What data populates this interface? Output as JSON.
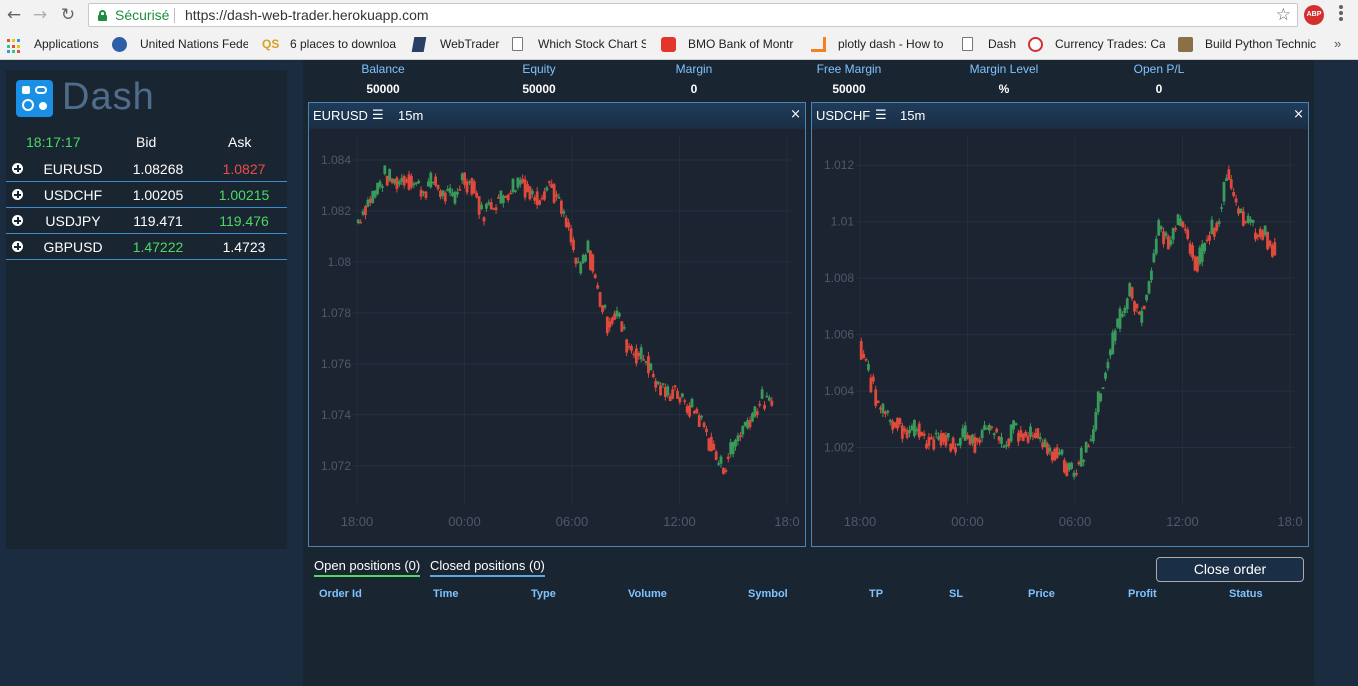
{
  "browser": {
    "secure_label": "Sécurisé",
    "url": "https://dash-web-trader.herokuapp.com",
    "abp_label": "ABP",
    "bookmarks": [
      {
        "label": "Applications"
      },
      {
        "label": "United Nations Fede"
      },
      {
        "label": "6 places to downloa"
      },
      {
        "label": "WebTrader"
      },
      {
        "label": "Which Stock Chart S"
      },
      {
        "label": "BMO Bank of Montr"
      },
      {
        "label": "plotly dash - How to"
      },
      {
        "label": "Dash"
      },
      {
        "label": "Currency Trades: Cal"
      },
      {
        "label": "Build Python Technic"
      }
    ],
    "more": "»"
  },
  "brand": {
    "name": "Dash"
  },
  "quotes": {
    "time": "18:17:17",
    "bid_header": "Bid",
    "ask_header": "Ask",
    "rows": [
      {
        "symbol": "EURUSD",
        "bid": "1.08268",
        "ask": "1.0827",
        "bid_dir": "neutral",
        "ask_dir": "down"
      },
      {
        "symbol": "USDCHF",
        "bid": "1.00205",
        "ask": "1.00215",
        "bid_dir": "neutral",
        "ask_dir": "up"
      },
      {
        "symbol": "USDJPY",
        "bid": "119.471",
        "ask": "119.476",
        "bid_dir": "neutral",
        "ask_dir": "up"
      },
      {
        "symbol": "GBPUSD",
        "bid": "1.47222",
        "ask": "1.4723",
        "bid_dir": "up",
        "ask_dir": "neutral"
      }
    ]
  },
  "account": {
    "items": [
      {
        "label": "Balance",
        "value": "50000"
      },
      {
        "label": "Equity",
        "value": "50000"
      },
      {
        "label": "Margin",
        "value": "0"
      },
      {
        "label": "Free Margin",
        "value": "50000"
      },
      {
        "label": "Margin Level",
        "value": "%"
      },
      {
        "label": "Open P/L",
        "value": "0"
      }
    ]
  },
  "charts": [
    {
      "symbol": "EURUSD",
      "menu_icon": "☰",
      "timeframe": "15m",
      "close_icon": "×"
    },
    {
      "symbol": "USDCHF",
      "menu_icon": "☰",
      "timeframe": "15m",
      "close_icon": "×"
    }
  ],
  "chart_data": [
    {
      "type": "candlestick",
      "symbol": "EURUSD",
      "x_ticks": [
        "18:00",
        "00:00",
        "06:00",
        "12:00",
        "18:0"
      ],
      "y_ticks": [
        "1.084",
        "1.082",
        "1.08",
        "1.078",
        "1.076",
        "1.074",
        "1.072"
      ],
      "ylim": [
        1.0705,
        1.0849
      ],
      "grid": true,
      "colors": {
        "up": "#3a9a5b",
        "down": "#e04a3c"
      },
      "close_path": [
        1.0815,
        1.0822,
        1.0828,
        1.0834,
        1.0831,
        1.0833,
        1.0831,
        1.0828,
        1.0832,
        1.0826,
        1.0825,
        1.0833,
        1.083,
        1.0819,
        1.0823,
        1.0825,
        1.0829,
        1.0833,
        1.0826,
        1.0826,
        1.0831,
        1.0822,
        1.0811,
        1.0796,
        1.0805,
        1.0788,
        1.0776,
        1.078,
        1.0768,
        1.0764,
        1.0762,
        1.0752,
        1.0748,
        1.075,
        1.0743,
        1.0742,
        1.0735,
        1.0724,
        1.0719,
        1.0729,
        1.0735,
        1.0741,
        1.0746,
        1.0743
      ]
    },
    {
      "type": "candlestick",
      "symbol": "USDCHF",
      "x_ticks": [
        "18:00",
        "00:00",
        "06:00",
        "12:00",
        "18:0"
      ],
      "y_ticks": [
        "1.012",
        "1.01",
        "1.008",
        "1.006",
        "1.004",
        "1.002"
      ],
      "ylim": [
        1.0,
        1.013
      ],
      "grid": true,
      "colors": {
        "up": "#3a9a5b",
        "down": "#e04a3c"
      },
      "close_path": [
        1.0058,
        1.0046,
        1.0035,
        1.0031,
        1.0029,
        1.0024,
        1.0027,
        1.0022,
        1.0023,
        1.0024,
        1.002,
        1.0024,
        1.0022,
        1.0026,
        1.0026,
        1.002,
        1.0026,
        1.0024,
        1.0027,
        1.0022,
        1.0019,
        1.0016,
        1.0011,
        1.0016,
        1.0024,
        1.004,
        1.0055,
        1.0067,
        1.0075,
        1.0065,
        1.0079,
        1.0098,
        1.0092,
        1.01,
        1.0094,
        1.0084,
        1.0096,
        1.0099,
        1.0118,
        1.0105,
        1.0101,
        1.0096,
        1.0095,
        1.009
      ]
    }
  ],
  "orders": {
    "tabs": [
      {
        "label": "Open positions (0)"
      },
      {
        "label": "Closed positions (0)"
      }
    ],
    "close_button": "Close order",
    "columns": [
      "Order Id",
      "Time",
      "Type",
      "Volume",
      "Symbol",
      "TP",
      "SL",
      "Price",
      "Profit",
      "Status"
    ]
  }
}
